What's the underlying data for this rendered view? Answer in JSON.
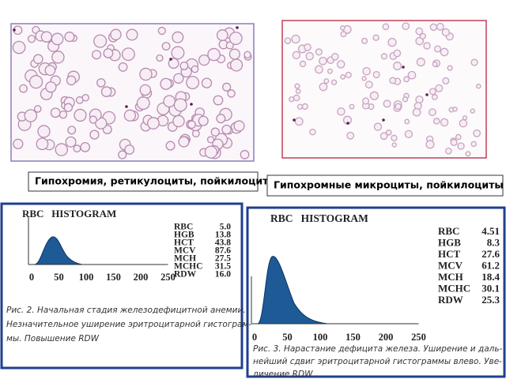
{
  "images": [
    {
      "caption": "Гипохромия, ретикулоциты, пойкилоциты"
    },
    {
      "caption": "Гипохромные микроциты, пойкилоциты"
    }
  ],
  "histograms": [
    {
      "title": "RBC   HISTOGRAM",
      "x_ticks": [
        "0",
        "50",
        "100",
        "150",
        "200",
        "250"
      ],
      "parameters": [
        {
          "name": "RBC",
          "value": "5.0"
        },
        {
          "name": "HGB",
          "value": "13.8"
        },
        {
          "name": "HCT",
          "value": "43.8"
        },
        {
          "name": "MCV",
          "value": "87.6"
        },
        {
          "name": "MCH",
          "value": "27.5"
        },
        {
          "name": "MCHC",
          "value": "31.5"
        },
        {
          "name": "RDW",
          "value": "16.0"
        }
      ],
      "caption": [
        "Рис. 2. Начальная стадия железодефицитной анемии.",
        "Незначительное уширение эритроцитарной гистограм-",
        "мы. Повышение RDW"
      ]
    },
    {
      "title": "RBC   HISTOGRAM",
      "x_ticks": [
        "0",
        "50",
        "100",
        "150",
        "200",
        "250"
      ],
      "parameters": [
        {
          "name": "RBC",
          "value": "4.51"
        },
        {
          "name": "HGB",
          "value": "8.3"
        },
        {
          "name": "HCT",
          "value": "27.6"
        },
        {
          "name": "MCV",
          "value": "61.2"
        },
        {
          "name": "MCH",
          "value": "18.4"
        },
        {
          "name": "MCHC",
          "value": "30.1"
        },
        {
          "name": "RDW",
          "value": "25.3"
        }
      ],
      "caption": [
        "Рис. 3. Нарастание дефицита железа. Уширение и даль-",
        "нейший сдвиг эритроцитарной гистограммы влево. Уве-",
        "личение RDW"
      ]
    }
  ]
}
